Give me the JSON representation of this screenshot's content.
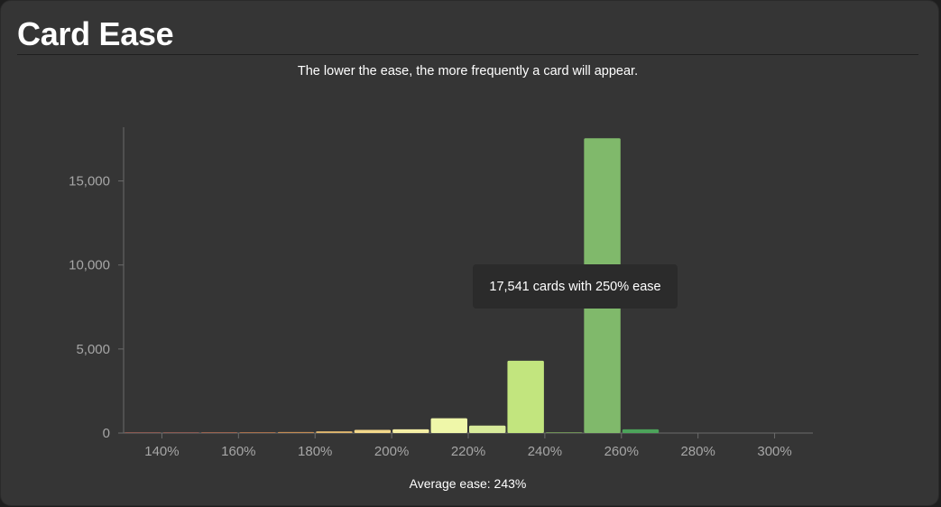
{
  "header": {
    "title": "Card Ease",
    "subtitle": "The lower the ease, the more frequently a card will appear."
  },
  "tooltip": {
    "text": "17,541 cards with 250% ease"
  },
  "footer": {
    "label": "Average ease:",
    "value": "243%"
  },
  "colors": {
    "background": "#353535",
    "axis": "#6b6b6b",
    "tick_text": "#a6a6a6"
  },
  "chart_data": {
    "type": "bar",
    "title": "Card Ease",
    "xlabel": "",
    "ylabel": "",
    "grid": false,
    "x_ticks": [
      "140%",
      "160%",
      "180%",
      "200%",
      "220%",
      "240%",
      "260%",
      "280%",
      "300%"
    ],
    "y_ticks": [
      "0",
      "5,000",
      "10,000",
      "15,000"
    ],
    "xlim": [
      130,
      310
    ],
    "ylim": [
      0,
      18200
    ],
    "bars": [
      {
        "ease": 130,
        "count": 10,
        "color": "#8a5a52"
      },
      {
        "ease": 140,
        "count": 10,
        "color": "#8a5a52"
      },
      {
        "ease": 150,
        "count": 15,
        "color": "#9a6450"
      },
      {
        "ease": 160,
        "count": 20,
        "color": "#a8704c"
      },
      {
        "ease": 170,
        "count": 60,
        "color": "#c48b55"
      },
      {
        "ease": 180,
        "count": 100,
        "color": "#e0b66e"
      },
      {
        "ease": 190,
        "count": 190,
        "color": "#f3d88a"
      },
      {
        "ease": 200,
        "count": 220,
        "color": "#f5efa5"
      },
      {
        "ease": 210,
        "count": 880,
        "color": "#eff7a9"
      },
      {
        "ease": 220,
        "count": 440,
        "color": "#d8eb9a"
      },
      {
        "ease": 230,
        "count": 4300,
        "color": "#c2e57e"
      },
      {
        "ease": 240,
        "count": 20,
        "color": "#6e8f55"
      },
      {
        "ease": 250,
        "count": 17541,
        "color": "#80b96b"
      },
      {
        "ease": 260,
        "count": 220,
        "color": "#4ca35a"
      }
    ]
  }
}
